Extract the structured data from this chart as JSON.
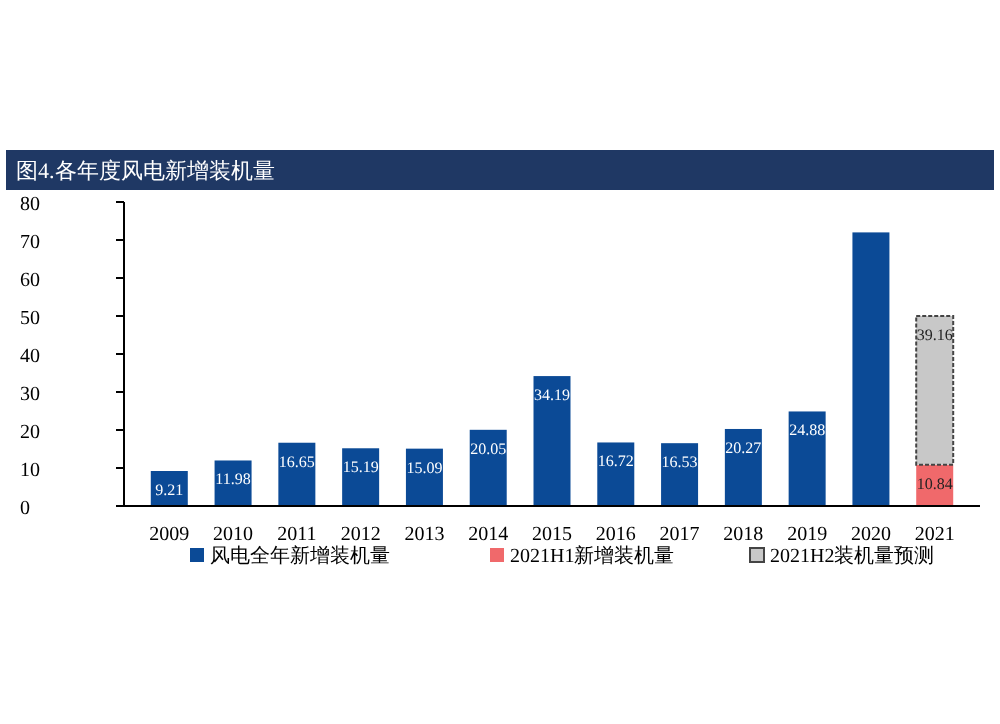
{
  "chart_data": {
    "type": "bar",
    "title": "图4.各年度风电新增装机量",
    "categories": [
      "2009",
      "2010",
      "2011",
      "2012",
      "2013",
      "2014",
      "2015",
      "2016",
      "2017",
      "2018",
      "2019",
      "2020",
      "2021"
    ],
    "stacked": true,
    "ylim": [
      0,
      80
    ],
    "yticks": [
      0,
      10,
      20,
      30,
      40,
      50,
      60,
      70,
      80
    ],
    "grid": false,
    "legend": "bottom",
    "series": [
      {
        "name": "风电全年新增装机量",
        "color": "#0b4a96",
        "values": [
          9.21,
          11.98,
          16.65,
          15.19,
          15.09,
          20.05,
          34.19,
          16.72,
          16.53,
          20.27,
          24.88,
          72,
          null
        ],
        "value_labels": [
          "9.21",
          "11.98",
          "16.65",
          "15.19",
          "15.09",
          "20.05",
          "34.19",
          "16.72",
          "16.53",
          "20.27",
          "24.88",
          null,
          null
        ]
      },
      {
        "name": "2021H1新增装机量",
        "color": "#f0696b",
        "values": [
          null,
          null,
          null,
          null,
          null,
          null,
          null,
          null,
          null,
          null,
          null,
          null,
          10.84
        ],
        "value_labels": [
          null,
          null,
          null,
          null,
          null,
          null,
          null,
          null,
          null,
          null,
          null,
          null,
          "10.84"
        ]
      },
      {
        "name": "2021H2装机量预测",
        "color": "#c8c8c8",
        "values": [
          null,
          null,
          null,
          null,
          null,
          null,
          null,
          null,
          null,
          null,
          null,
          null,
          39.16
        ],
        "value_labels": [
          null,
          null,
          null,
          null,
          null,
          null,
          null,
          null,
          null,
          null,
          null,
          null,
          "39.16"
        ]
      }
    ]
  }
}
